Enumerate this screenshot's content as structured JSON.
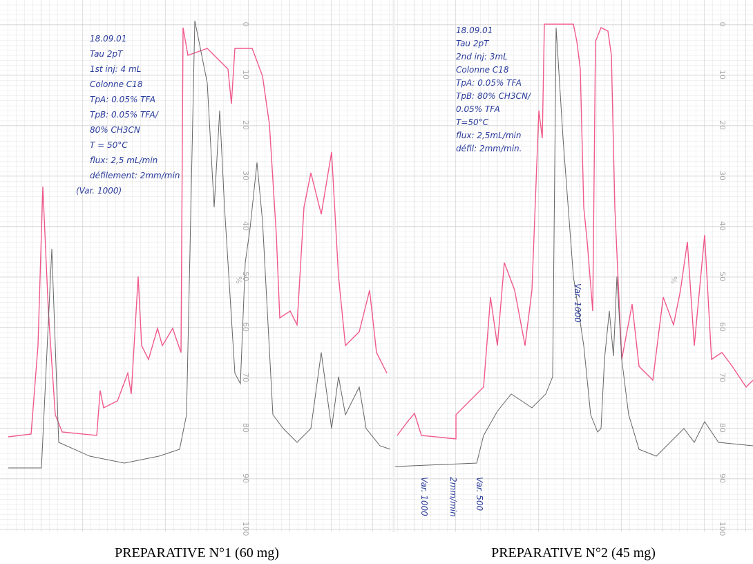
{
  "captions": [
    "PREPARATIVE N°1 (60 mg)",
    "PREPARATIVE N°2 (45 mg)"
  ],
  "panel1_notes": [
    "18.09.01",
    "Tau 2pT",
    "1st inj: 4 mL",
    "Colonne C18",
    "TpA: 0.05% TFA",
    "TpB: 0.05% TFA/",
    "80% CH3CN",
    "T = 50°C",
    "flux: 2,5 mL/min",
    "défilement: 2mm/min",
    "(Var. 1000)"
  ],
  "panel2_notes": [
    "18.09.01",
    "Tau 2pT",
    "2nd inj: 3mL",
    "Colonne C18",
    "TpA: 0.05% TFA",
    "TpB: 80% CH3CN/",
    "0.05% TFA",
    "T=50°C",
    "flux: 2,5mL/min",
    "défil: 2mm/min."
  ],
  "scale_labels": [
    "0",
    "10",
    "20",
    "30",
    "40",
    "50",
    "60",
    "70",
    "80",
    "90",
    "100"
  ],
  "percent_sign": "%",
  "trace_notes": [
    "Var. 1000",
    "2mm/min",
    "Var. 500",
    "Var. 1000"
  ]
}
